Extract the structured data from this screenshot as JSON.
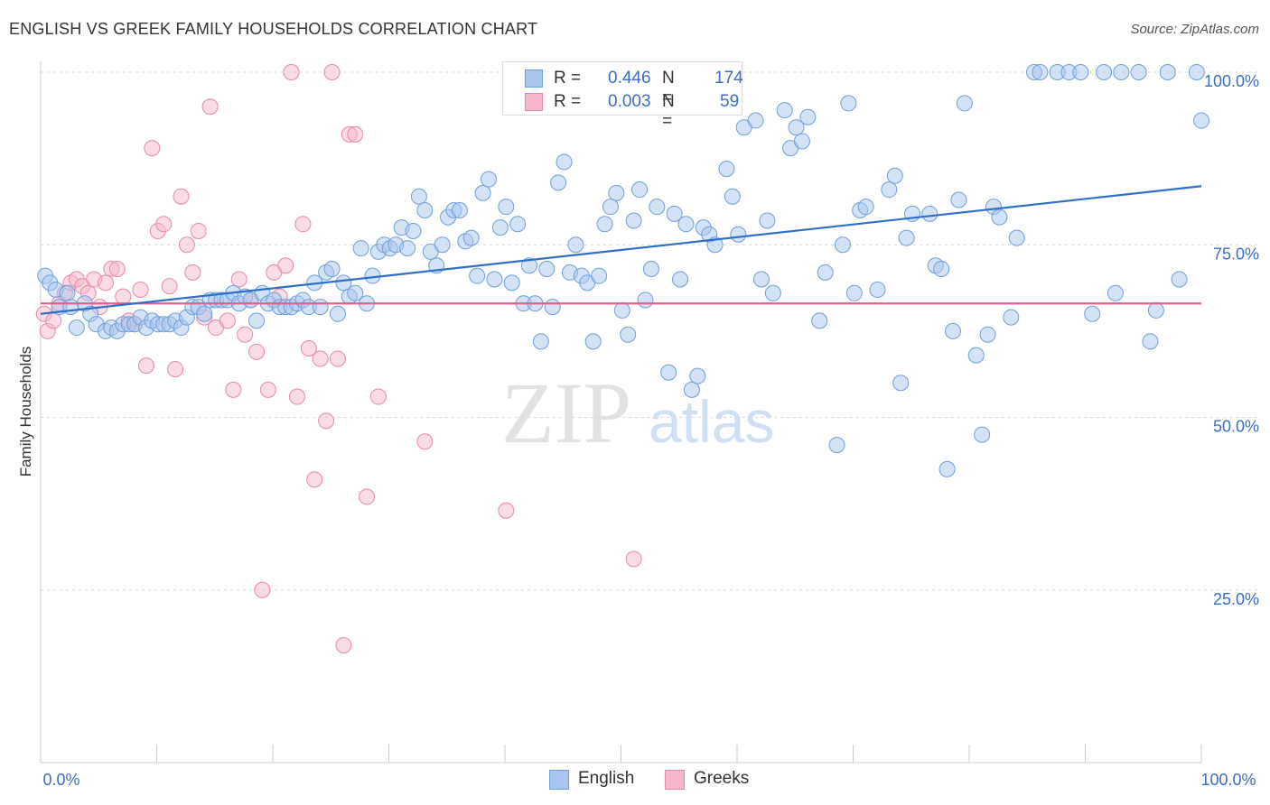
{
  "title": "ENGLISH VS GREEK FAMILY HOUSEHOLDS CORRELATION CHART",
  "source": "Source: ZipAtlas.com",
  "watermark": {
    "zip": "ZIP",
    "atlas": "atlas"
  },
  "legend": {
    "rows": [
      {
        "r_label": "R =",
        "r_value": "0.446",
        "n_label": "N =",
        "n_value": "174"
      },
      {
        "r_label": "R =",
        "r_value": "0.003",
        "n_label": "N =",
        "n_value": "59"
      }
    ]
  },
  "bottom_legend": [
    "English",
    "Greeks"
  ],
  "colors": {
    "english_fill": "#a9c6ee",
    "english_stroke": "#6f9fdc",
    "english_line": "#2f6fc8",
    "greeks_fill": "#f7b7cb",
    "greeks_stroke": "#e889a8",
    "greeks_line": "#e0608e",
    "tick_label": "#3a6fc4",
    "grid": "#d8d8d8",
    "axis": "#cccccc"
  },
  "chart_data": {
    "type": "scatter",
    "title": "ENGLISH VS GREEK FAMILY HOUSEHOLDS CORRELATION CHART",
    "xlabel": "",
    "ylabel": "Family Households",
    "xlim": [
      0,
      100
    ],
    "ylim": [
      0,
      102
    ],
    "x_tick_labels": [
      "0.0%",
      "100.0%"
    ],
    "y_ticks": [
      25,
      50,
      75,
      100
    ],
    "y_tick_labels": [
      "25.0%",
      "50.0%",
      "75.0%",
      "100.0%"
    ],
    "grid": "horizontal dashed",
    "legend_placement": "bottom-center",
    "series": [
      {
        "name": "English",
        "r": 0.446,
        "n": 174,
        "trend": [
          [
            0,
            65.0
          ],
          [
            100,
            83.5
          ]
        ],
        "points": [
          [
            0.4,
            70.5
          ],
          [
            0.8,
            69.5
          ],
          [
            1.3,
            68.5
          ],
          [
            1.6,
            66
          ],
          [
            2.3,
            68
          ],
          [
            2.6,
            66
          ],
          [
            3.1,
            63
          ],
          [
            3.8,
            66.5
          ],
          [
            4.3,
            65
          ],
          [
            4.8,
            63.5
          ],
          [
            5.6,
            62.5
          ],
          [
            6.1,
            63
          ],
          [
            6.6,
            62.5
          ],
          [
            7.1,
            63.5
          ],
          [
            7.6,
            63.5
          ],
          [
            8.1,
            63.5
          ],
          [
            8.6,
            64.5
          ],
          [
            9.1,
            63
          ],
          [
            9.6,
            64
          ],
          [
            10.1,
            63.5
          ],
          [
            10.6,
            63.5
          ],
          [
            11.1,
            63.5
          ],
          [
            11.6,
            64
          ],
          [
            12.1,
            63
          ],
          [
            12.6,
            64.5
          ],
          [
            13.1,
            66
          ],
          [
            13.6,
            66
          ],
          [
            14.1,
            65
          ],
          [
            14.6,
            67
          ],
          [
            15.1,
            67
          ],
          [
            15.6,
            67
          ],
          [
            16.1,
            67
          ],
          [
            16.6,
            68
          ],
          [
            17.1,
            66.5
          ],
          [
            17.6,
            67.5
          ],
          [
            18.1,
            67
          ],
          [
            18.6,
            64
          ],
          [
            19.1,
            68
          ],
          [
            19.6,
            66.5
          ],
          [
            20.1,
            67
          ],
          [
            20.6,
            66
          ],
          [
            21.1,
            66
          ],
          [
            21.6,
            66
          ],
          [
            22.1,
            66.5
          ],
          [
            22.6,
            67
          ],
          [
            23.1,
            66
          ],
          [
            23.6,
            69.5
          ],
          [
            24.1,
            66
          ],
          [
            24.6,
            71
          ],
          [
            25.1,
            71.5
          ],
          [
            25.6,
            65
          ],
          [
            26.1,
            69.5
          ],
          [
            26.6,
            67.5
          ],
          [
            27.1,
            68
          ],
          [
            27.6,
            74.5
          ],
          [
            28.1,
            66.5
          ],
          [
            28.6,
            70.5
          ],
          [
            29.1,
            74
          ],
          [
            29.6,
            75
          ],
          [
            30.1,
            74.5
          ],
          [
            30.6,
            75
          ],
          [
            31.1,
            77.5
          ],
          [
            31.6,
            74.5
          ],
          [
            32.1,
            77
          ],
          [
            32.6,
            82
          ],
          [
            33.1,
            80
          ],
          [
            33.6,
            74
          ],
          [
            34.1,
            72
          ],
          [
            34.6,
            75
          ],
          [
            35.1,
            79
          ],
          [
            35.6,
            80
          ],
          [
            36.1,
            80
          ],
          [
            36.6,
            75.5
          ],
          [
            37.1,
            76
          ],
          [
            37.6,
            70.5
          ],
          [
            38.1,
            82.5
          ],
          [
            38.6,
            84.5
          ],
          [
            39.1,
            70
          ],
          [
            39.6,
            77.5
          ],
          [
            40.1,
            80.5
          ],
          [
            40.6,
            69.5
          ],
          [
            41.1,
            78
          ],
          [
            41.6,
            66.5
          ],
          [
            42.1,
            72
          ],
          [
            42.6,
            66.5
          ],
          [
            43.1,
            61
          ],
          [
            43.6,
            71.5
          ],
          [
            44.1,
            66
          ],
          [
            44.6,
            84
          ],
          [
            45.1,
            87
          ],
          [
            45.6,
            71
          ],
          [
            46.1,
            75
          ],
          [
            46.6,
            70.5
          ],
          [
            47.1,
            69.5
          ],
          [
            47.6,
            61
          ],
          [
            48.1,
            70.5
          ],
          [
            48.6,
            78
          ],
          [
            49.1,
            80.5
          ],
          [
            49.6,
            82.5
          ],
          [
            50.1,
            65.5
          ],
          [
            50.6,
            62
          ],
          [
            51.1,
            78.5
          ],
          [
            51.6,
            83
          ],
          [
            52.1,
            67
          ],
          [
            52.6,
            71.5
          ],
          [
            53.1,
            80.5
          ],
          [
            54.1,
            56.5
          ],
          [
            54.6,
            79.5
          ],
          [
            55.1,
            70
          ],
          [
            55.6,
            78
          ],
          [
            56.1,
            54
          ],
          [
            56.6,
            56
          ],
          [
            57.1,
            77.5
          ],
          [
            57.6,
            76.5
          ],
          [
            58.1,
            75
          ],
          [
            59.1,
            86
          ],
          [
            59.6,
            82
          ],
          [
            60.1,
            76.5
          ],
          [
            60.6,
            92
          ],
          [
            61.6,
            93
          ],
          [
            62.1,
            70
          ],
          [
            62.6,
            78.5
          ],
          [
            63.1,
            68
          ],
          [
            64.1,
            94.5
          ],
          [
            64.6,
            89
          ],
          [
            65.1,
            92
          ],
          [
            65.6,
            90
          ],
          [
            66.1,
            93.5
          ],
          [
            67.1,
            64
          ],
          [
            67.6,
            71
          ],
          [
            68.6,
            46
          ],
          [
            69.1,
            75
          ],
          [
            69.6,
            95.5
          ],
          [
            70.1,
            68
          ],
          [
            70.6,
            80
          ],
          [
            71.1,
            80.5
          ],
          [
            72.1,
            68.5
          ],
          [
            73.1,
            83
          ],
          [
            73.6,
            85
          ],
          [
            74.1,
            55
          ],
          [
            74.6,
            76
          ],
          [
            75.1,
            79.5
          ],
          [
            76.6,
            79.5
          ],
          [
            77.1,
            72
          ],
          [
            77.6,
            71.5
          ],
          [
            78.1,
            42.5
          ],
          [
            78.6,
            62.5
          ],
          [
            79.1,
            81.5
          ],
          [
            79.6,
            95.5
          ],
          [
            80.6,
            59
          ],
          [
            81.1,
            47.5
          ],
          [
            81.6,
            62
          ],
          [
            82.1,
            80.5
          ],
          [
            82.6,
            79
          ],
          [
            83.6,
            64.5
          ],
          [
            84.1,
            76
          ],
          [
            85.6,
            100
          ],
          [
            86.1,
            100
          ],
          [
            87.6,
            100
          ],
          [
            88.6,
            100
          ],
          [
            89.6,
            100
          ],
          [
            90.6,
            65
          ],
          [
            91.6,
            100
          ],
          [
            92.6,
            68
          ],
          [
            93.1,
            100
          ],
          [
            94.6,
            100
          ],
          [
            95.6,
            61
          ],
          [
            96.1,
            65.5
          ],
          [
            97.1,
            100
          ],
          [
            98.1,
            70
          ],
          [
            99.6,
            100
          ],
          [
            100,
            93
          ]
        ]
      },
      {
        "name": "Greeks",
        "r": 0.003,
        "n": 59,
        "trend": [
          [
            0,
            66.5
          ],
          [
            100,
            66.5
          ]
        ],
        "points": [
          [
            0.3,
            65
          ],
          [
            0.6,
            62.5
          ],
          [
            1.1,
            64
          ],
          [
            1.6,
            66.5
          ],
          [
            2.1,
            68
          ],
          [
            2.6,
            69.5
          ],
          [
            3.1,
            70
          ],
          [
            3.6,
            69
          ],
          [
            4.1,
            68
          ],
          [
            4.6,
            70
          ],
          [
            5.1,
            66
          ],
          [
            5.6,
            69.5
          ],
          [
            6.1,
            71.5
          ],
          [
            6.6,
            71.5
          ],
          [
            7.1,
            67.5
          ],
          [
            7.6,
            64
          ],
          [
            8.1,
            63.5
          ],
          [
            8.6,
            68.5
          ],
          [
            9.1,
            57.5
          ],
          [
            9.6,
            89
          ],
          [
            10.1,
            77
          ],
          [
            10.6,
            78
          ],
          [
            11.1,
            69
          ],
          [
            11.6,
            57
          ],
          [
            12.1,
            82
          ],
          [
            12.6,
            75
          ],
          [
            13.1,
            71
          ],
          [
            13.6,
            77
          ],
          [
            14.1,
            64.5
          ],
          [
            14.6,
            95
          ],
          [
            15.1,
            63
          ],
          [
            16.1,
            64
          ],
          [
            16.6,
            54
          ],
          [
            17.1,
            70
          ],
          [
            17.6,
            62
          ],
          [
            18.1,
            67
          ],
          [
            18.6,
            59.5
          ],
          [
            19.1,
            25
          ],
          [
            19.6,
            54
          ],
          [
            20.1,
            71
          ],
          [
            20.6,
            67.5
          ],
          [
            21.1,
            72
          ],
          [
            21.6,
            100
          ],
          [
            22.1,
            53
          ],
          [
            22.6,
            78
          ],
          [
            23.1,
            60
          ],
          [
            23.6,
            41
          ],
          [
            24.1,
            58.5
          ],
          [
            24.6,
            49.5
          ],
          [
            25.1,
            100
          ],
          [
            25.6,
            58.5
          ],
          [
            26.1,
            17
          ],
          [
            26.6,
            91
          ],
          [
            27.1,
            91
          ],
          [
            28.1,
            38.5
          ],
          [
            29.1,
            53
          ],
          [
            33.1,
            46.5
          ],
          [
            40.1,
            36.5
          ],
          [
            51.1,
            29.5
          ]
        ]
      }
    ]
  }
}
